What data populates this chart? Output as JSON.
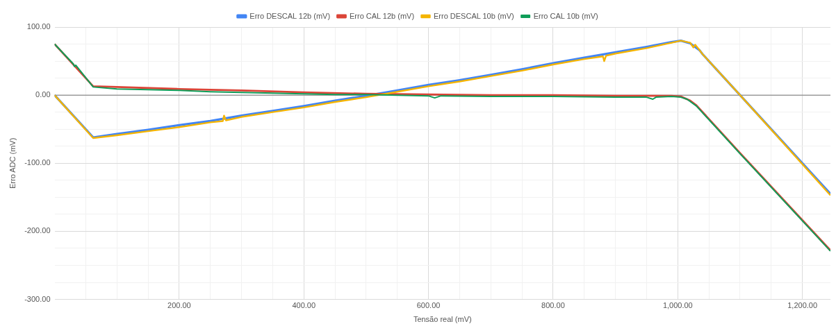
{
  "chart_data": {
    "type": "line",
    "xlabel": "Tensão real (mV)",
    "ylabel": "Erro ADC (mV)",
    "legend": "top",
    "grid": true,
    "xlim": [
      0,
      1245
    ],
    "ylim": [
      -300,
      100
    ],
    "xticks": [
      {
        "value": 50,
        "label": null
      },
      {
        "value": 100,
        "label": null
      },
      {
        "value": 150,
        "label": null
      },
      {
        "value": 200,
        "label": "200.00"
      },
      {
        "value": 250,
        "label": null
      },
      {
        "value": 300,
        "label": null
      },
      {
        "value": 350,
        "label": null
      },
      {
        "value": 400,
        "label": "400.00"
      },
      {
        "value": 450,
        "label": null
      },
      {
        "value": 500,
        "label": null
      },
      {
        "value": 550,
        "label": null
      },
      {
        "value": 600,
        "label": "600.00"
      },
      {
        "value": 650,
        "label": null
      },
      {
        "value": 700,
        "label": null
      },
      {
        "value": 750,
        "label": null
      },
      {
        "value": 800,
        "label": "800.00"
      },
      {
        "value": 850,
        "label": null
      },
      {
        "value": 900,
        "label": null
      },
      {
        "value": 950,
        "label": null
      },
      {
        "value": 1000,
        "label": "1,000.00"
      },
      {
        "value": 1050,
        "label": null
      },
      {
        "value": 1100,
        "label": null
      },
      {
        "value": 1150,
        "label": null
      },
      {
        "value": 1200,
        "label": "1,200.00"
      }
    ],
    "yticks": [
      {
        "value": -300,
        "label": "-300.00"
      },
      {
        "value": -275,
        "label": null
      },
      {
        "value": -250,
        "label": null
      },
      {
        "value": -225,
        "label": null
      },
      {
        "value": -200,
        "label": "-200.00"
      },
      {
        "value": -175,
        "label": null
      },
      {
        "value": -150,
        "label": null
      },
      {
        "value": -125,
        "label": null
      },
      {
        "value": -100,
        "label": "-100.00"
      },
      {
        "value": -75,
        "label": null
      },
      {
        "value": -50,
        "label": null
      },
      {
        "value": -25,
        "label": null
      },
      {
        "value": 0,
        "label": "0.00"
      },
      {
        "value": 25,
        "label": null
      },
      {
        "value": 50,
        "label": null
      },
      {
        "value": 75,
        "label": null
      },
      {
        "value": 100,
        "label": "100.00"
      }
    ],
    "ref_lines": [
      {
        "axis": "y",
        "value": 0,
        "color": "#757575"
      }
    ],
    "series": [
      {
        "name": "Erro DESCAL 12b (mV)",
        "color": "#4285f4",
        "x": [
          0,
          62,
          100,
          150,
          200,
          250,
          300,
          350,
          400,
          450,
          500,
          550,
          600,
          650,
          700,
          750,
          800,
          850,
          900,
          950,
          990,
          1005,
          1020,
          1035,
          1040,
          1100,
          1245
        ],
        "values": [
          0,
          -62,
          -57,
          -51,
          -44,
          -38,
          -30,
          -23,
          -16,
          -8,
          -1,
          7,
          15,
          22,
          30,
          38,
          47,
          55,
          63,
          71,
          78,
          80,
          76,
          66,
          60,
          0,
          -145
        ]
      },
      {
        "name": "Erro CAL 12b (mV)",
        "color": "#db4437",
        "x": [
          0,
          62,
          100,
          200,
          300,
          400,
          500,
          600,
          700,
          800,
          900,
          990,
          1005,
          1020,
          1030,
          1100,
          1245
        ],
        "values": [
          75,
          13,
          12,
          9,
          7,
          4,
          2,
          1,
          0,
          0,
          -1,
          -1,
          -2,
          -8,
          -15,
          -85,
          -228
        ]
      },
      {
        "name": "Erro DESCAL 10b (mV)",
        "color": "#f4b400",
        "x": [
          0,
          62,
          100,
          150,
          200,
          250,
          270,
          272,
          275,
          300,
          350,
          400,
          450,
          500,
          550,
          600,
          650,
          700,
          750,
          800,
          850,
          880,
          882,
          885,
          900,
          950,
          990,
          1005,
          1020,
          1025,
          1028,
          1035,
          1040,
          1100,
          1245
        ],
        "values": [
          0,
          -63,
          -59,
          -53,
          -47,
          -40,
          -38,
          -30,
          -37,
          -32,
          -25,
          -18,
          -10,
          -3,
          5,
          13,
          20,
          28,
          36,
          45,
          53,
          57,
          50,
          58,
          61,
          69,
          77,
          80,
          77,
          70,
          74,
          66,
          60,
          0,
          -147
        ]
      },
      {
        "name": "Erro CAL 10b (mV)",
        "color": "#0f9d58",
        "x": [
          0,
          30,
          32,
          34,
          62,
          100,
          150,
          200,
          250,
          300,
          350,
          400,
          450,
          500,
          550,
          600,
          610,
          620,
          700,
          800,
          900,
          950,
          960,
          965,
          990,
          1005,
          1015,
          1030,
          1100,
          1245
        ],
        "values": [
          75,
          46,
          42,
          44,
          12,
          9,
          8,
          7,
          5,
          4,
          3,
          2,
          1,
          1,
          0,
          -1,
          -4,
          -1,
          -2,
          -2,
          -3,
          -3,
          -6,
          -3,
          -2,
          -3,
          -6,
          -16,
          -86,
          -229
        ]
      }
    ]
  }
}
